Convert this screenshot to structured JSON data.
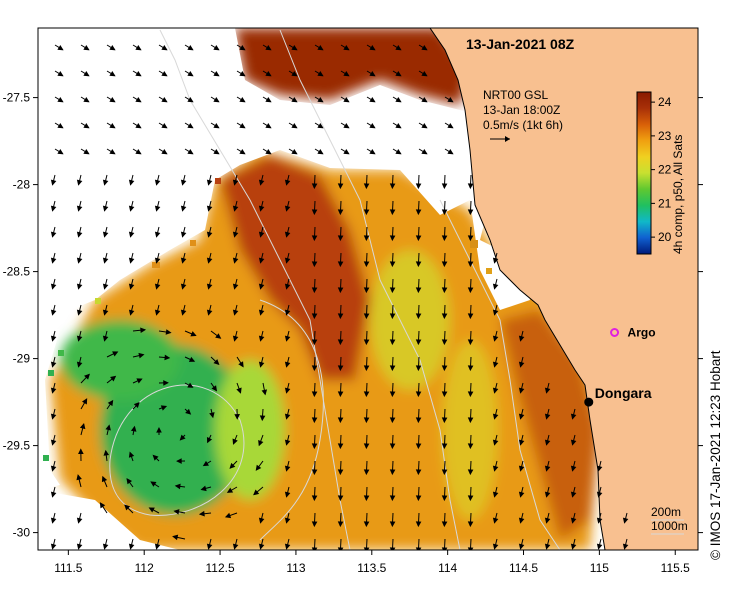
{
  "map": {
    "title": "13-Jan-2021 08Z",
    "current_label": {
      "line1": "NRT00 GSL",
      "line2": "13-Jan 18:00Z",
      "line3": "0.5m/s (1kt 6h)"
    },
    "colorbar": {
      "label": "4h comp, p50, All Sats",
      "ticks": [
        "24",
        "23",
        "22",
        "21",
        "20"
      ],
      "range": [
        19.5,
        24.3
      ],
      "colors": [
        "#001a7a",
        "#1060d0",
        "#10b8c8",
        "#20c060",
        "#60c830",
        "#c8e030",
        "#f0d020",
        "#f0a010",
        "#d86008",
        "#a83008",
        "#8a1a00"
      ]
    },
    "x_ticks": [
      "111.5",
      "112",
      "112.5",
      "113",
      "113.5",
      "114",
      "114.5",
      "115",
      "115.5"
    ],
    "y_ticks": [
      "-27.5",
      "-28",
      "-28.5",
      "-29",
      "-29.5",
      "-30"
    ],
    "x_range": [
      111.3,
      115.65
    ],
    "y_range": [
      -30.1,
      -27.1
    ],
    "places": [
      {
        "name": "Dongara",
        "lon": 114.93,
        "lat": -29.25
      },
      {
        "name": "Argo",
        "lon": 115.1,
        "lat": -28.85
      }
    ],
    "isobath_legend": {
      "line1": "200m",
      "line2": "1000m"
    },
    "credit": "© IMOS 17-Jan-2021 12:23 Hobart",
    "land_color": "#f8c090",
    "no_data_color": "#ffffff",
    "map_background": "#ffffff"
  }
}
